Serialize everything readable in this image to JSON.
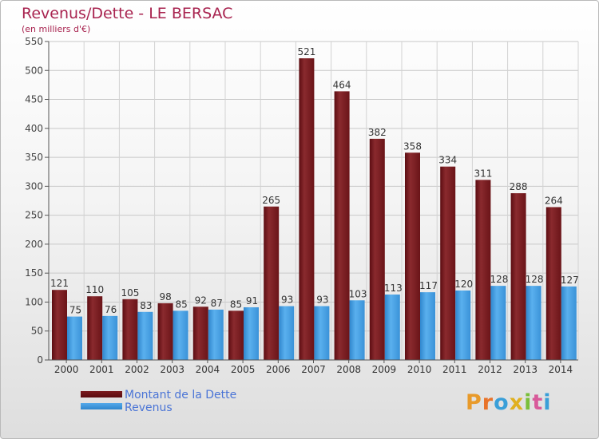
{
  "header": {
    "title": "Revenus/Dette - LE BERSAC",
    "subtitle": "(en milliers d'€)"
  },
  "legend": {
    "dette_label": "Montant de la Dette",
    "revenus_label": "Revenus"
  },
  "logo": {
    "text": "Proxiti",
    "letters": [
      "P",
      "r",
      "o",
      "x",
      "i",
      "t",
      "i"
    ],
    "colors": [
      "#e89a2a",
      "#e8732a",
      "#3a9fd8",
      "#e0b020",
      "#7abf3a",
      "#d85a9a",
      "#3a9fd8"
    ]
  },
  "colors": {
    "dette": "#7a1a1e",
    "revenus": "#3d95dd",
    "title": "#a8234f"
  },
  "chart_data": {
    "type": "bar",
    "categories": [
      "2000",
      "2001",
      "2002",
      "2003",
      "2004",
      "2005",
      "2006",
      "2007",
      "2008",
      "2009",
      "2010",
      "2011",
      "2012",
      "2013",
      "2014"
    ],
    "series": [
      {
        "name": "Montant de la Dette",
        "values": [
          121,
          110,
          105,
          98,
          92,
          85,
          265,
          521,
          464,
          382,
          358,
          334,
          311,
          288,
          264
        ]
      },
      {
        "name": "Revenus",
        "values": [
          75,
          76,
          83,
          85,
          87,
          91,
          93,
          93,
          103,
          113,
          117,
          120,
          128,
          128,
          127
        ]
      }
    ],
    "title": "Revenus/Dette - LE BERSAC",
    "subtitle": "(en milliers d'€)",
    "ylim": [
      0,
      550
    ],
    "yticks": [
      0,
      50,
      100,
      150,
      200,
      250,
      300,
      350,
      400,
      450,
      500,
      550
    ],
    "grid": true,
    "legend_position": "bottom-left"
  }
}
